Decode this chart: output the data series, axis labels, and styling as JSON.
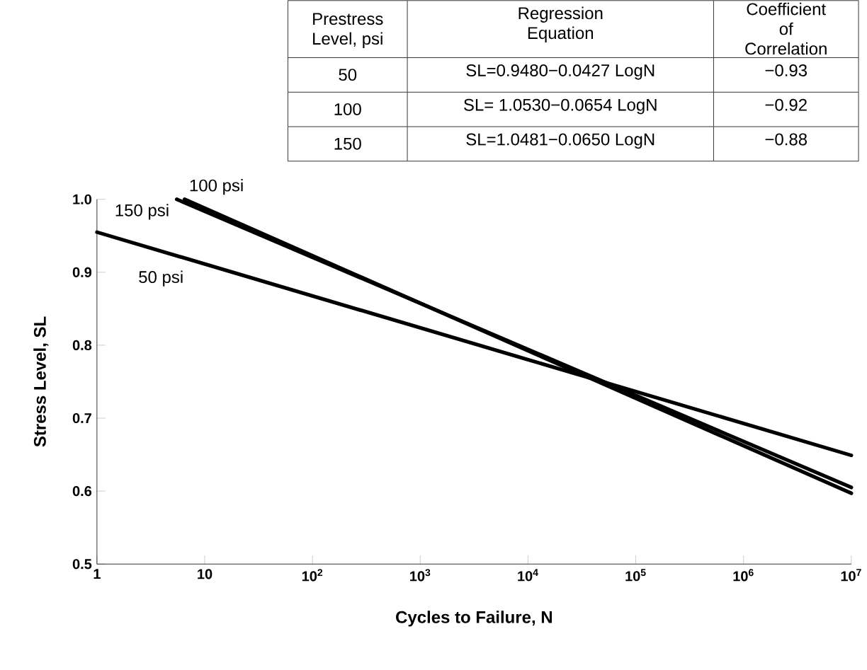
{
  "chart_data": {
    "type": "line",
    "xlabel": "Cycles to Failure, N",
    "ylabel": "Stress Level, SL",
    "log": "x",
    "xlim": [
      1,
      10000000
    ],
    "ylim": [
      0.5,
      1.0
    ],
    "xticks": [
      1,
      10,
      {
        "value": 100,
        "label": "10$^{2}$"
      },
      {
        "value": 1000,
        "label": "10$^{3}$"
      },
      {
        "value": 10000,
        "label": "10$^{4}$"
      },
      {
        "value": 100000,
        "label": "10$^{5}$"
      },
      {
        "value": 1000000,
        "label": "10$^{6}$"
      },
      {
        "value": 10000000,
        "label": "10$^{7}$"
      }
    ],
    "yticks": [
      0.5,
      0.6,
      0.7,
      0.8,
      0.9,
      {
        "value": 1.0,
        "label": "1.0"
      }
    ],
    "grid": false,
    "legend": false,
    "marker": "none",
    "line_style": "solid",
    "series": [
      {
        "name": "100 psi",
        "color": "#000000",
        "x": [
          6.5,
          10000000
        ],
        "values": [
          1.0,
          0.597
        ]
      },
      {
        "name": "150 psi",
        "color": "#000000",
        "x": [
          5.5,
          10000000
        ],
        "values": [
          1.0,
          0.605
        ]
      },
      {
        "name": "50 psi",
        "color": "#000000",
        "x": [
          1,
          10000000
        ],
        "values": [
          0.955,
          0.649
        ]
      }
    ],
    "annotations": [
      "Prestress Level, psi",
      "Regression Equation",
      "Coefficient of Correlation",
      "50",
      "SL=0.9480−0.0427 LogN",
      "−0.93",
      "100",
      "SL= 1.0530−0.0654 LogN",
      "−0.92",
      "150",
      "SL=1.0481−0.0650 LogN",
      "−0.88"
    ]
  }
}
